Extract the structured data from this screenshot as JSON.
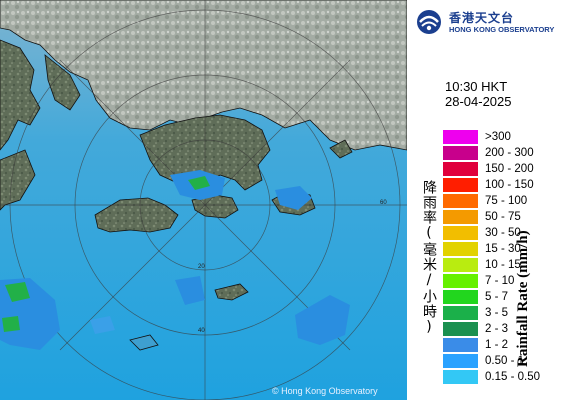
{
  "branding": {
    "name_cn": "香港天文台",
    "name_en": "HONG KONG OBSERVATORY",
    "copyright": "© Hong Kong Observatory"
  },
  "timestamp": {
    "time": "10:30 HKT",
    "date": "28-04-2025"
  },
  "legend": {
    "title_cn": "降雨率(毫米/小時)",
    "title_en": "Rainfall Rate (mm/h)",
    "items": [
      {
        "label": ">300",
        "color": "#ee00ee"
      },
      {
        "label": "200 - 300",
        "color": "#c8008c"
      },
      {
        "label": "150 - 200",
        "color": "#e0003c"
      },
      {
        "label": "100 - 150",
        "color": "#ff1e00"
      },
      {
        "label": "75 - 100",
        "color": "#ff6a00"
      },
      {
        "label": "50 - 75",
        "color": "#f49a00"
      },
      {
        "label": "30 - 50",
        "color": "#f2be00"
      },
      {
        "label": "15 - 30",
        "color": "#e2d200"
      },
      {
        "label": "10 - 15",
        "color": "#b9ec10"
      },
      {
        "label": "7 - 10",
        "color": "#66f000"
      },
      {
        "label": "5 - 7",
        "color": "#22d61e"
      },
      {
        "label": "3 - 5",
        "color": "#1bb04a"
      },
      {
        "label": "2 - 3",
        "color": "#1b9050"
      },
      {
        "label": "1 - 2",
        "color": "#3a8ce8"
      },
      {
        "label": "0.50 - 1",
        "color": "#2aa2ff"
      },
      {
        "label": "0.15 - 0.50",
        "color": "#33c8f5"
      }
    ]
  },
  "map": {
    "range_ring_labels": [
      "20",
      "40",
      "60"
    ],
    "sea_color": "#4fa8d6",
    "land_color": "#5c6b52"
  }
}
